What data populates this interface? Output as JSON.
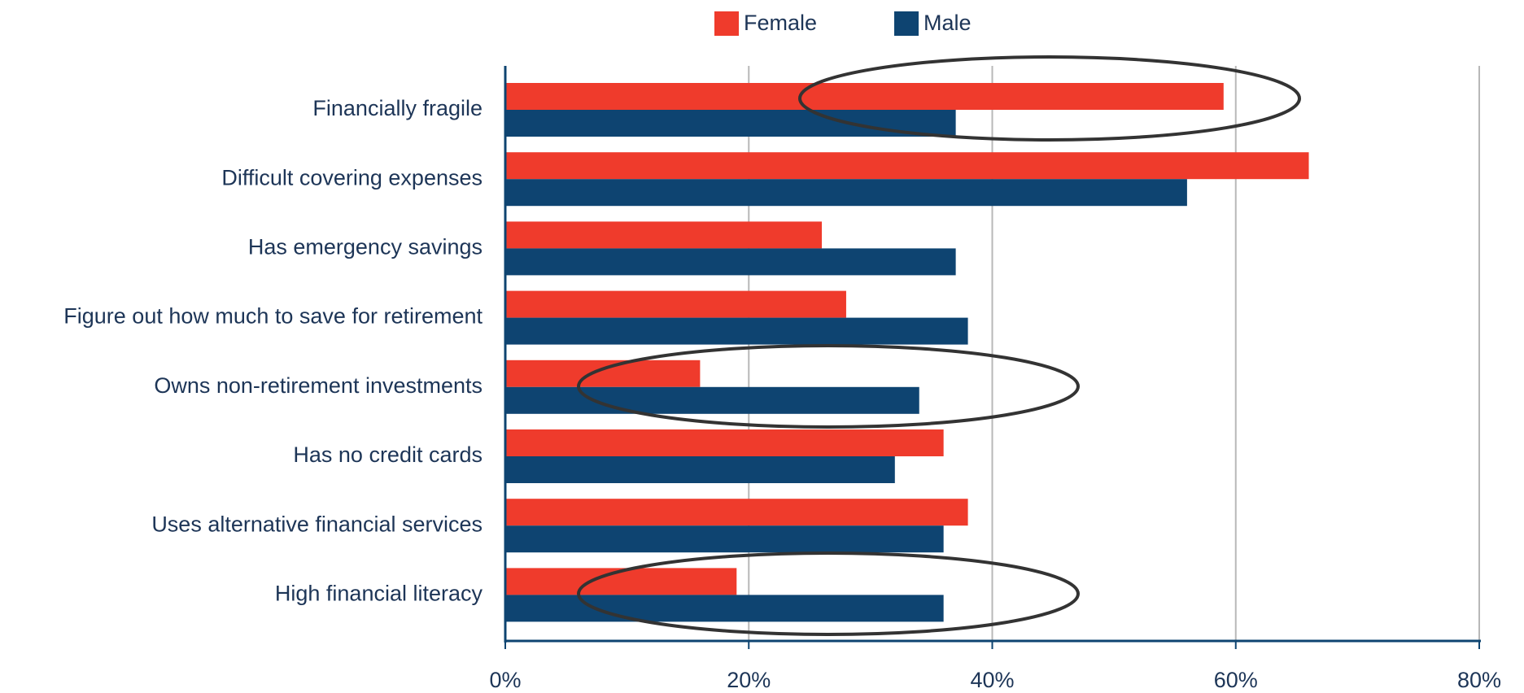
{
  "chart_data": {
    "type": "hbar",
    "categories": [
      "Financially fragile",
      "Difficult covering expenses",
      "Has emergency savings",
      "Figure out how much to save for retirement",
      "Owns non-retirement investments",
      "Has no credit cards",
      "Uses alternative financial services",
      "High financial literacy"
    ],
    "series": [
      {
        "name": "Female",
        "color": "#ef3b2c",
        "values": [
          59,
          66,
          26,
          28,
          16,
          36,
          38,
          19
        ]
      },
      {
        "name": "Male",
        "color": "#0e4471",
        "values": [
          37,
          56,
          37,
          38,
          34,
          32,
          36,
          36
        ]
      }
    ],
    "xlim": [
      0,
      80
    ],
    "xticks": [
      {
        "value": 0,
        "label": "0%"
      },
      {
        "value": 20,
        "label": "20%"
      },
      {
        "value": 40,
        "label": "40%"
      },
      {
        "value": 60,
        "label": "60%"
      },
      {
        "value": 80,
        "label": "80%"
      }
    ],
    "grid": true,
    "legend": "top"
  }
}
